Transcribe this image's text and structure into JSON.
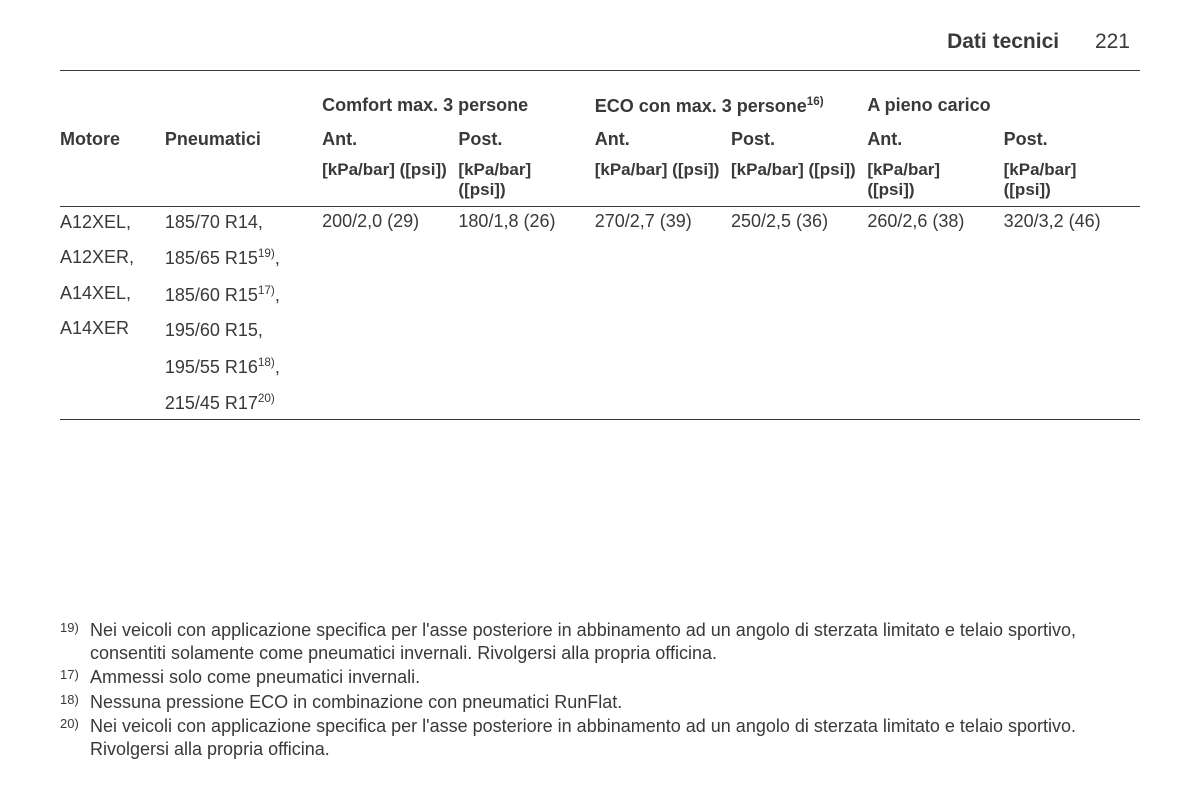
{
  "header": {
    "title": "Dati tecnici",
    "page": "221"
  },
  "table": {
    "columns": {
      "motore": "Motore",
      "pneumatici": "Pneumatici",
      "groups": [
        {
          "label": "Comfort max. 3 persone",
          "sup": ""
        },
        {
          "label": "ECO con max. 3 persone",
          "sup": "16)"
        },
        {
          "label": "A pieno carico",
          "sup": ""
        }
      ],
      "sub": {
        "ant": "Ant.",
        "post": "Post."
      },
      "unit": "[kPa/bar] ([psi])",
      "unit_wrap": "[kPa/bar] ([psi])"
    },
    "row": {
      "motors": [
        "A12XEL,",
        "A12XER,",
        "A14XEL,",
        "A14XER"
      ],
      "tyres": [
        {
          "text": "185/70 R14,",
          "sup": ""
        },
        {
          "text": "185/65 R15",
          "sup": "19)",
          "tail": ","
        },
        {
          "text": "185/60 R15",
          "sup": "17)",
          "tail": ","
        },
        {
          "text": "195/60 R15,",
          "sup": ""
        },
        {
          "text": "195/55 R16",
          "sup": "18)",
          "tail": ","
        },
        {
          "text": "215/45 R17",
          "sup": "20)",
          "tail": ""
        }
      ],
      "values": {
        "comfort_ant": "200/2,0 (29)",
        "comfort_post": "180/1,8 (26)",
        "eco_ant": "270/2,7 (39)",
        "eco_post": "250/2,5 (36)",
        "full_ant": "260/2,6 (38)",
        "full_post": "320/3,2 (46)"
      }
    }
  },
  "footnotes": [
    {
      "num": "19)",
      "text": "Nei veicoli con applicazione specifica per l'asse posteriore in abbinamento ad un angolo di sterzata limitato e telaio sportivo, consentiti solamente come pneumatici invernali. Rivolgersi alla propria officina."
    },
    {
      "num": "17)",
      "text": "Ammessi solo come pneumatici invernali."
    },
    {
      "num": "18)",
      "text": "Nessuna pressione ECO in combinazione con pneumatici RunFlat."
    },
    {
      "num": "20)",
      "text": "Nei veicoli con applicazione specifica per l'asse posteriore in abbinamento ad un angolo di sterzata limitato e telaio sportivo. Rivolgersi alla propria officina."
    }
  ]
}
